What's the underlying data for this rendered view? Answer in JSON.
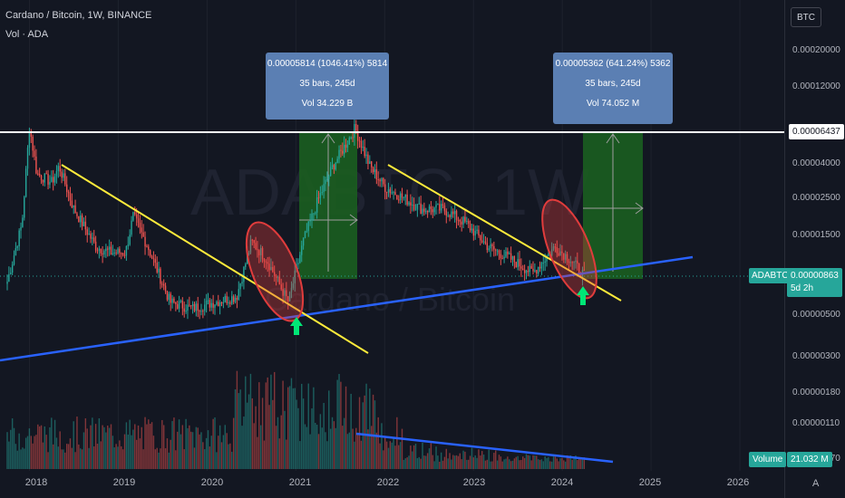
{
  "header": {
    "symbol_line": "Cardano / Bitcoin, 1W, BINANCE",
    "volume_line": "Vol · ADA"
  },
  "price_scale": {
    "currency": "BTC",
    "ticks": [
      "0.00020000",
      "0.00012000",
      "0.00006437",
      "0.00004000",
      "0.00002500",
      "0.00001500",
      "0.00000863",
      "0.00000500",
      "0.00000300",
      "0.00000180",
      "0.00000110",
      "0.00000070"
    ]
  },
  "time_axis": {
    "labels": [
      "2018",
      "2019",
      "2020",
      "2021",
      "2022",
      "2023",
      "2024",
      "2025",
      "2026"
    ]
  },
  "measurements": [
    {
      "line1": "0.00005814 (1046.41%) 5814",
      "line2": "35 bars, 245d",
      "line3": "Vol 34.229 B"
    },
    {
      "line1": "0.00005362 (641.24%) 5362",
      "line2": "35 bars, 245d",
      "line3": "Vol 74.052 M"
    }
  ],
  "resistance_label": "0.00006437",
  "symbol_flag": {
    "ticker": "ADABTC",
    "price": "0.00000863",
    "countdown": "5d 2h"
  },
  "volume_flag": {
    "label": "Volume",
    "value": "21.032 M"
  },
  "watermark": {
    "symbol": "ADABTC, 1W",
    "name": "Cardano / Bitcoin"
  },
  "corner_glyph": "A",
  "colors": {
    "background": "#131722",
    "up_candle": "#26a69a",
    "down_candle": "#ef5350",
    "support_line": "#2962ff",
    "downtrend_line": "#ffeb3b",
    "resistance_line": "#ffffff",
    "highlight_ellipse": "#e03c3c",
    "projection_box": "#1b5e20",
    "arrow": "#00e676",
    "measure_box": "#5b7fb3"
  },
  "chart_data": {
    "type": "candlestick",
    "title": "Cardano / Bitcoin, 1W, BINANCE",
    "x_range": [
      "2017-10",
      "2026-07"
    ],
    "y_scale": "log",
    "y_range": [
      7e-07,
      0.0003
    ],
    "last_price": 8.63e-06,
    "resistance_level": 6.437e-05,
    "anchors": [
      {
        "date": "2017-10",
        "close": 8e-06
      },
      {
        "date": "2017-12",
        "close": 1.8e-05
      },
      {
        "date": "2018-01",
        "close": 7e-05
      },
      {
        "date": "2018-02",
        "close": 3.6e-05
      },
      {
        "date": "2018-04",
        "close": 3.2e-05
      },
      {
        "date": "2018-05",
        "close": 4e-05
      },
      {
        "date": "2018-07",
        "close": 2.2e-05
      },
      {
        "date": "2018-10",
        "close": 1.3e-05
      },
      {
        "date": "2018-12",
        "close": 1.2e-05
      },
      {
        "date": "2019-02",
        "close": 1.2e-05
      },
      {
        "date": "2019-03",
        "close": 2e-05
      },
      {
        "date": "2019-05",
        "close": 1.3e-05
      },
      {
        "date": "2019-08",
        "close": 6e-06
      },
      {
        "date": "2019-11",
        "close": 5.5e-06
      },
      {
        "date": "2020-02",
        "close": 6e-06
      },
      {
        "date": "2020-05",
        "close": 6.5e-06
      },
      {
        "date": "2020-07",
        "close": 1.4e-05
      },
      {
        "date": "2020-09",
        "close": 1.1e-05
      },
      {
        "date": "2020-12",
        "close": 6e-06
      },
      {
        "date": "2021-02",
        "close": 1.4e-05
      },
      {
        "date": "2021-04",
        "close": 2.5e-05
      },
      {
        "date": "2021-06",
        "close": 4e-05
      },
      {
        "date": "2021-09",
        "close": 6.8e-05
      },
      {
        "date": "2021-11",
        "close": 4e-05
      },
      {
        "date": "2022-01",
        "close": 3e-05
      },
      {
        "date": "2022-04",
        "close": 2.5e-05
      },
      {
        "date": "2022-06",
        "close": 2.2e-05
      },
      {
        "date": "2022-09",
        "close": 2.2e-05
      },
      {
        "date": "2022-12",
        "close": 1.8e-05
      },
      {
        "date": "2023-03",
        "close": 1.3e-05
      },
      {
        "date": "2023-06",
        "close": 1.1e-05
      },
      {
        "date": "2023-09",
        "close": 9e-06
      },
      {
        "date": "2023-12",
        "close": 1.3e-05
      },
      {
        "date": "2024-02",
        "close": 1.1e-05
      },
      {
        "date": "2024-04",
        "close": 8.63e-06
      }
    ]
  }
}
